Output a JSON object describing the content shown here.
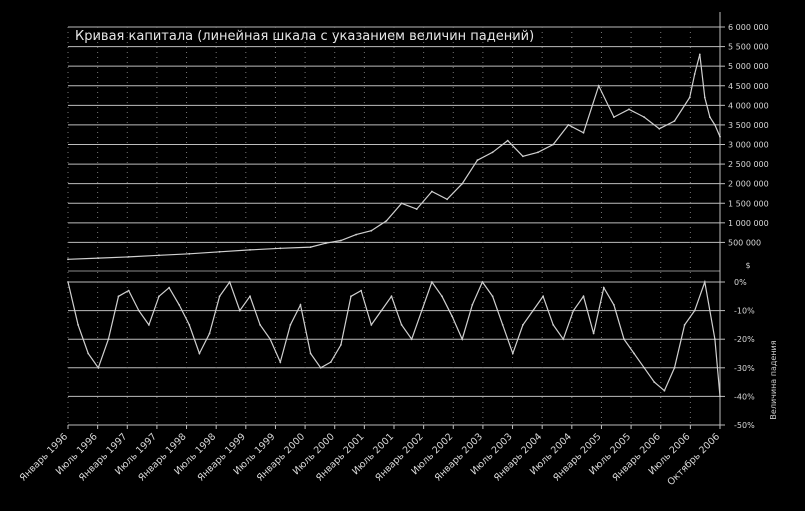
{
  "chart_data": [
    {
      "type": "line",
      "title": "Кривая капитала (линейная шкала с указанием величин падений)",
      "ylabel": "",
      "y_unit": "$",
      "ylim": [
        0,
        6000000
      ],
      "y_ticks": [
        {
          "value": 500000,
          "label": "500 000"
        },
        {
          "value": 1000000,
          "label": "1 000 000"
        },
        {
          "value": 1500000,
          "label": "1 500 000"
        },
        {
          "value": 2000000,
          "label": "2 000 000"
        },
        {
          "value": 2500000,
          "label": "2 500 000"
        },
        {
          "value": 3000000,
          "label": "3 000 000"
        },
        {
          "value": 3500000,
          "label": "3 500 000"
        },
        {
          "value": 4000000,
          "label": "4 000 000"
        },
        {
          "value": 4500000,
          "label": "4 500 000"
        },
        {
          "value": 5000000,
          "label": "5 000 000"
        },
        {
          "value": 5500000,
          "label": "5 500 000"
        },
        {
          "value": 6000000,
          "label": "6 000 000"
        }
      ],
      "grid": true,
      "x_ticks": [
        "Январь 1996",
        "Июль 1996",
        "Январь 1997",
        "Июль 1997",
        "Январь 1998",
        "Июль 1998",
        "Январь 1999",
        "Июль 1999",
        "Январь 2000",
        "Июль 2000",
        "Январь 2001",
        "Июль 2001",
        "Январь 2002",
        "Июль 2002",
        "Январь 2003",
        "Июль 2003",
        "Январь 2004",
        "Июль 2004",
        "Январь 2005",
        "Июль 2005",
        "Январь 2006",
        "Июль 2006",
        "Октябрь 2006"
      ],
      "series": [
        {
          "x": [
            "1996-01",
            "1996-07",
            "1997-01",
            "1997-07",
            "1998-01",
            "1998-07",
            "1999-01",
            "1999-07",
            "2000-01",
            "2000-04",
            "2000-07",
            "2000-10",
            "2001-01",
            "2001-04",
            "2001-07",
            "2001-10",
            "2002-01",
            "2002-04",
            "2002-07",
            "2002-10",
            "2003-01",
            "2003-04",
            "2003-07",
            "2003-10",
            "2004-01",
            "2004-04",
            "2004-07",
            "2004-10",
            "2005-01",
            "2005-04",
            "2005-07",
            "2005-10",
            "2006-01",
            "2006-04",
            "2006-05",
            "2006-06",
            "2006-07",
            "2006-08",
            "2006-09",
            "2006-10"
          ],
          "values": [
            70000,
            100000,
            130000,
            170000,
            210000,
            260000,
            310000,
            350000,
            380000,
            480000,
            550000,
            700000,
            800000,
            1050000,
            1500000,
            1350000,
            1800000,
            1600000,
            2000000,
            2600000,
            2800000,
            3100000,
            2700000,
            2800000,
            3000000,
            3500000,
            3300000,
            4500000,
            3700000,
            3900000,
            3700000,
            3400000,
            3600000,
            4200000,
            4800000,
            5300000,
            4200000,
            3700000,
            3500000,
            3200000
          ]
        }
      ]
    },
    {
      "type": "area",
      "ylabel": "Величина падения",
      "y_unit": "%",
      "ylim": [
        -50,
        0
      ],
      "y_ticks": [
        {
          "value": 0,
          "label": "0%"
        },
        {
          "value": -10,
          "label": "-10%"
        },
        {
          "value": -20,
          "label": "-20%"
        },
        {
          "value": -30,
          "label": "-30%"
        },
        {
          "value": -40,
          "label": "-40%"
        },
        {
          "value": -50,
          "label": "-50%"
        }
      ],
      "grid": true,
      "series": [
        {
          "x": [
            "1996-01",
            "1996-03",
            "1996-05",
            "1996-07",
            "1996-09",
            "1996-11",
            "1997-01",
            "1997-03",
            "1997-05",
            "1997-07",
            "1997-09",
            "1997-11",
            "1998-01",
            "1998-03",
            "1998-05",
            "1998-07",
            "1998-09",
            "1998-11",
            "1999-01",
            "1999-03",
            "1999-05",
            "1999-07",
            "1999-09",
            "1999-11",
            "2000-01",
            "2000-03",
            "2000-05",
            "2000-07",
            "2000-09",
            "2000-11",
            "2001-01",
            "2001-03",
            "2001-05",
            "2001-07",
            "2001-09",
            "2001-11",
            "2002-01",
            "2002-03",
            "2002-05",
            "2002-07",
            "2002-09",
            "2002-11",
            "2003-01",
            "2003-03",
            "2003-05",
            "2003-07",
            "2003-09",
            "2003-11",
            "2004-01",
            "2004-03",
            "2004-05",
            "2004-07",
            "2004-09",
            "2004-11",
            "2005-01",
            "2005-03",
            "2005-05",
            "2005-07",
            "2005-09",
            "2005-11",
            "2006-01",
            "2006-03",
            "2006-05",
            "2006-07",
            "2006-09",
            "2006-10"
          ],
          "values": [
            0,
            -15,
            -25,
            -30,
            -20,
            -5,
            -3,
            -10,
            -15,
            -5,
            -2,
            -8,
            -15,
            -25,
            -18,
            -5,
            0,
            -10,
            -5,
            -15,
            -20,
            -28,
            -15,
            -8,
            -25,
            -30,
            -28,
            -22,
            -5,
            -3,
            -15,
            -10,
            -5,
            -15,
            -20,
            -10,
            0,
            -5,
            -12,
            -20,
            -8,
            0,
            -5,
            -15,
            -25,
            -15,
            -10,
            -5,
            -15,
            -20,
            -10,
            -5,
            -18,
            -2,
            -8,
            -20,
            -25,
            -30,
            -35,
            -38,
            -30,
            -15,
            -10,
            0,
            -20,
            -40
          ]
        }
      ]
    }
  ]
}
